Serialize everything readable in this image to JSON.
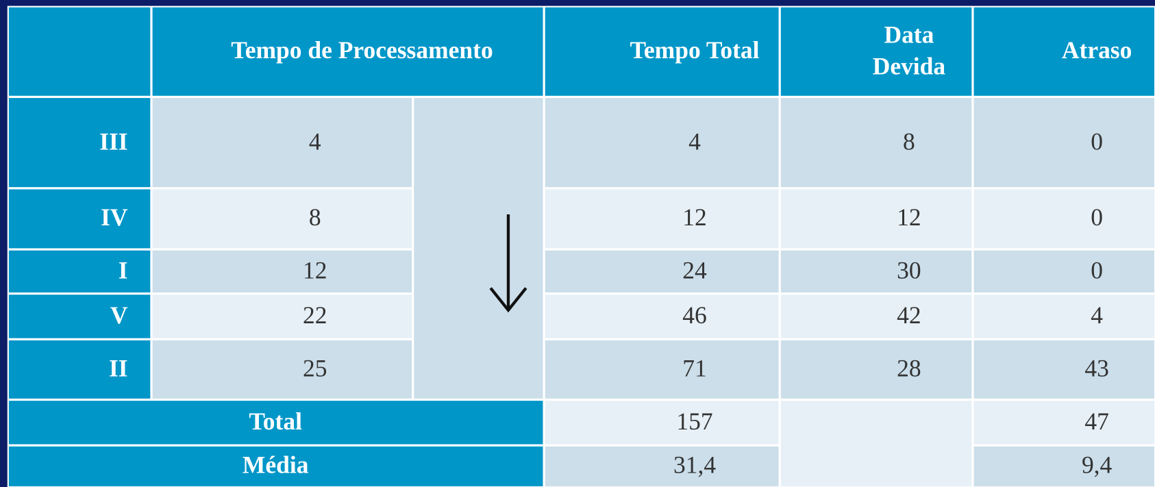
{
  "headers": {
    "processing": "Tempo de Processamento",
    "total_time": "Tempo Total",
    "due": "Data Devida",
    "delay": "Atraso"
  },
  "rows": [
    {
      "job": "III",
      "processing": 4,
      "total_time": 4,
      "due": 8,
      "delay": 0
    },
    {
      "job": "IV",
      "processing": 8,
      "total_time": 12,
      "due": 12,
      "delay": 0
    },
    {
      "job": "I",
      "processing": 12,
      "total_time": 24,
      "due": 30,
      "delay": 0
    },
    {
      "job": "V",
      "processing": 22,
      "total_time": 46,
      "due": 42,
      "delay": 4
    },
    {
      "job": "II",
      "processing": 25,
      "total_time": 71,
      "due": 28,
      "delay": 43
    }
  ],
  "summary": {
    "total": {
      "label": "Total",
      "total_time": 157,
      "delay": 47
    },
    "mean": {
      "label": "Média",
      "total_time": "31,4",
      "delay": "9,4"
    }
  }
}
